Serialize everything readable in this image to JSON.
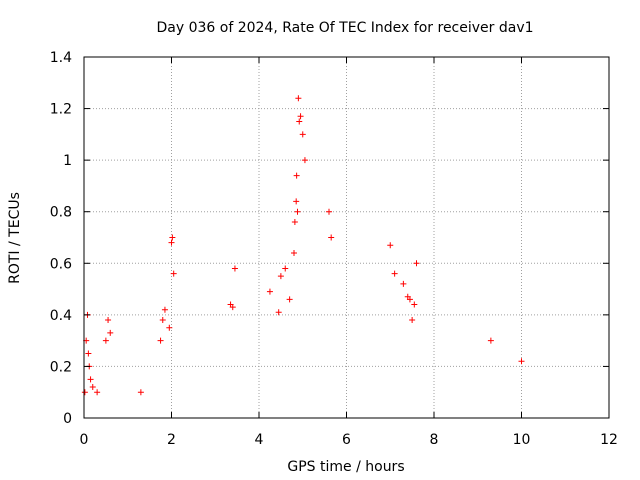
{
  "chart_data": {
    "type": "scatter",
    "title": "Day 036 of 2024, Rate Of TEC Index for receiver dav1",
    "xlabel": "GPS time / hours",
    "ylabel": "ROTI / TECUs",
    "xlim": [
      0,
      12
    ],
    "ylim": [
      0,
      1.4
    ],
    "xticks": [
      "0",
      "2",
      "4",
      "6",
      "8",
      "10",
      "12"
    ],
    "yticks": [
      "0",
      "0.2",
      "0.4",
      "0.6",
      "0.8",
      "1",
      "1.2",
      "1.4"
    ],
    "grid": true,
    "marker": "+",
    "color": "#ff0000",
    "series": [
      {
        "name": "dav1",
        "x": [
          0.02,
          0.05,
          0.08,
          0.1,
          0.12,
          0.15,
          0.2,
          0.3,
          0.5,
          0.55,
          0.6,
          1.3,
          1.75,
          1.8,
          1.85,
          1.95,
          2.0,
          2.02,
          2.05,
          3.35,
          3.4,
          3.45,
          4.25,
          4.45,
          4.5,
          4.6,
          4.7,
          4.8,
          4.82,
          4.85,
          4.86,
          4.88,
          4.9,
          4.92,
          4.95,
          5.0,
          5.05,
          5.6,
          5.65,
          7.0,
          7.1,
          7.3,
          7.4,
          7.45,
          7.5,
          7.55,
          7.6,
          9.3,
          10.0
        ],
        "y": [
          0.1,
          0.3,
          0.4,
          0.25,
          0.2,
          0.15,
          0.12,
          0.1,
          0.3,
          0.38,
          0.33,
          0.1,
          0.3,
          0.38,
          0.42,
          0.35,
          0.68,
          0.7,
          0.56,
          0.44,
          0.43,
          0.58,
          0.49,
          0.41,
          0.55,
          0.58,
          0.46,
          0.64,
          0.76,
          0.84,
          0.94,
          0.8,
          1.24,
          1.15,
          1.17,
          1.1,
          1.0,
          0.8,
          0.7,
          0.67,
          0.56,
          0.52,
          0.47,
          0.46,
          0.38,
          0.44,
          0.6,
          0.3,
          0.22
        ]
      }
    ]
  }
}
